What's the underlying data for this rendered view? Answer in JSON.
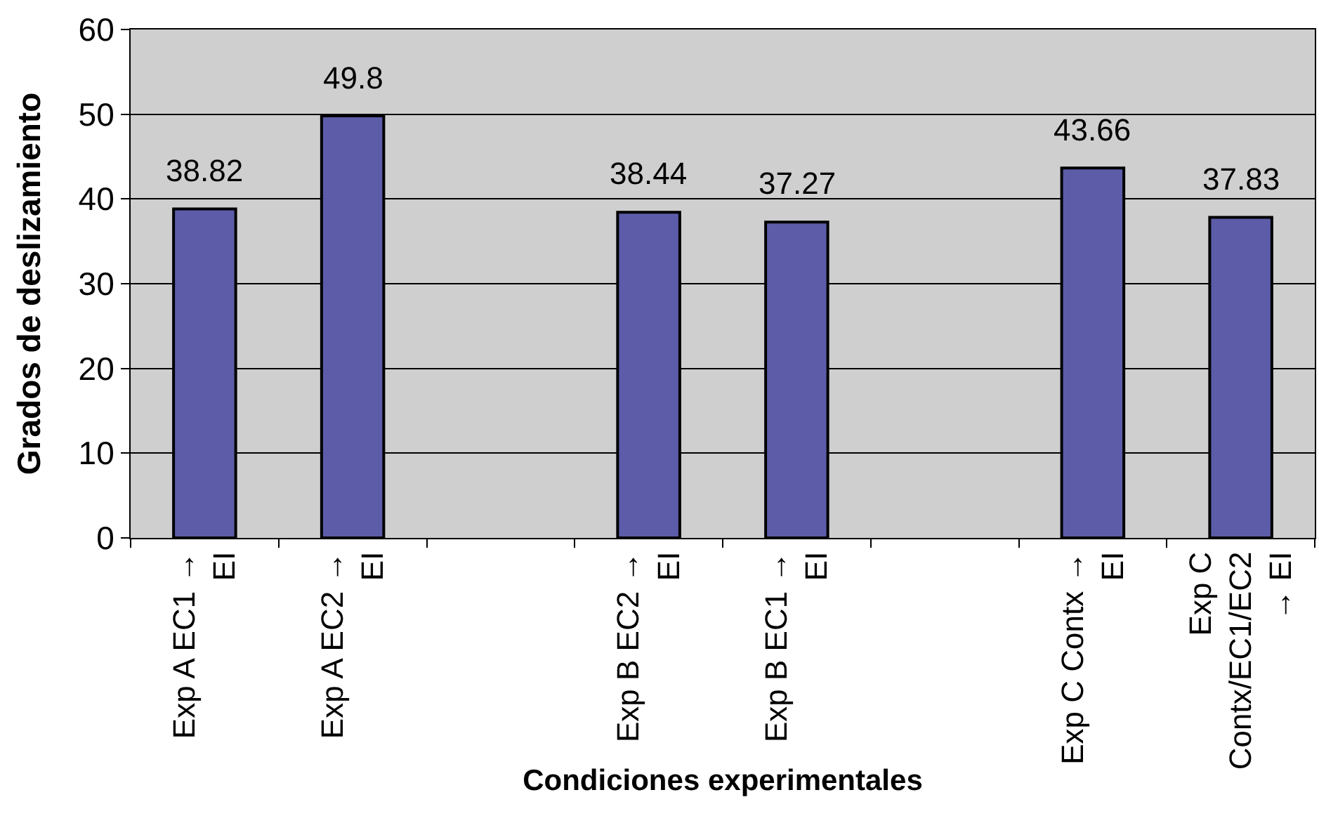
{
  "chart_data": {
    "type": "bar",
    "xlabel": "Condiciones experimentales",
    "ylabel": "Grados de deslizamiento",
    "categories": [
      "Exp A EC1 → EI",
      "Exp A EC2 → EI",
      null,
      "Exp B EC2 → EI",
      "Exp B EC1 → EI",
      null,
      "Exp C Contx → EI",
      "Exp C Contx/EC1/EC2 → EI"
    ],
    "values": [
      38.82,
      49.8,
      null,
      38.44,
      37.27,
      null,
      43.66,
      37.83
    ],
    "color": "#5c5ca8",
    "ylim": [
      0,
      60
    ],
    "yticks": [
      0,
      10,
      20,
      30,
      40,
      50,
      60
    ],
    "grid": "y",
    "data_labels": true
  }
}
